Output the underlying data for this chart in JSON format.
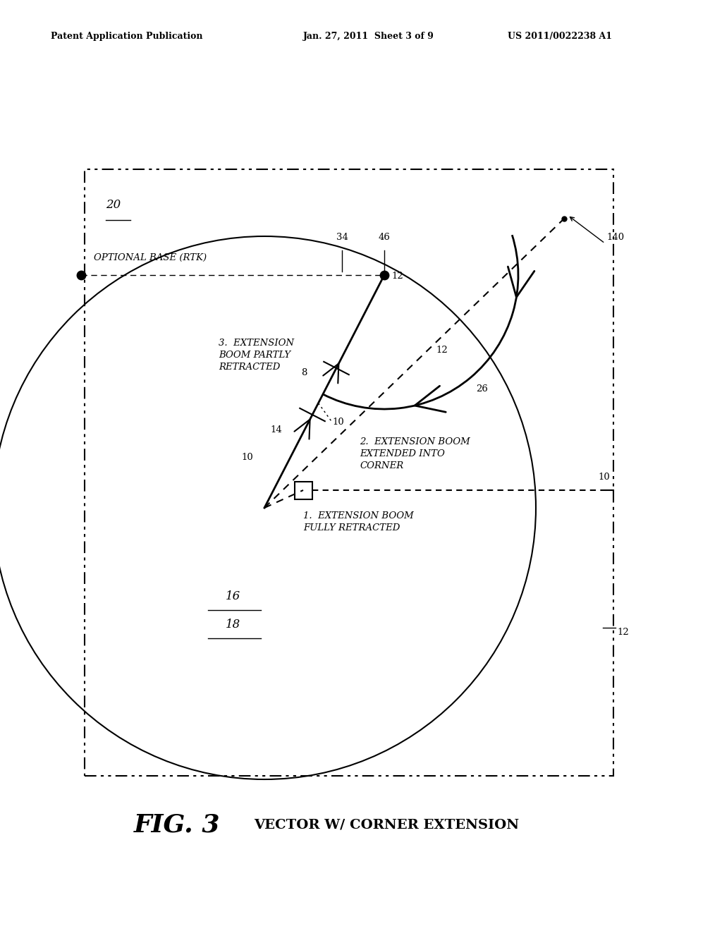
{
  "bg_color": "#ffffff",
  "header_left": "Patent Application Publication",
  "header_center": "Jan. 27, 2011  Sheet 3 of 9",
  "header_right": "US 2011/0022238 A1",
  "fig_label": "FIG. 3",
  "fig_subtitle": "VECTOR W/ CORNER EXTENSION",
  "label_optional_base": "OPTIONAL BASE (RTK)",
  "label_20": "20",
  "label_16": "16",
  "label_18": "18",
  "label_34": "34",
  "label_46": "46",
  "label_140": "140",
  "label_12": "12",
  "label_26": "26",
  "label_8": "8",
  "label_14": "14",
  "label_10": "10",
  "text1": "3.  EXTENSION\nBOOM PARTLY\nRETRACTED",
  "text2": "2.  EXTENSION BOOM\nEXTENDED INTO\nCORNER",
  "text3": "1.  EXTENSION BOOM\nFULLY RETRACTED"
}
